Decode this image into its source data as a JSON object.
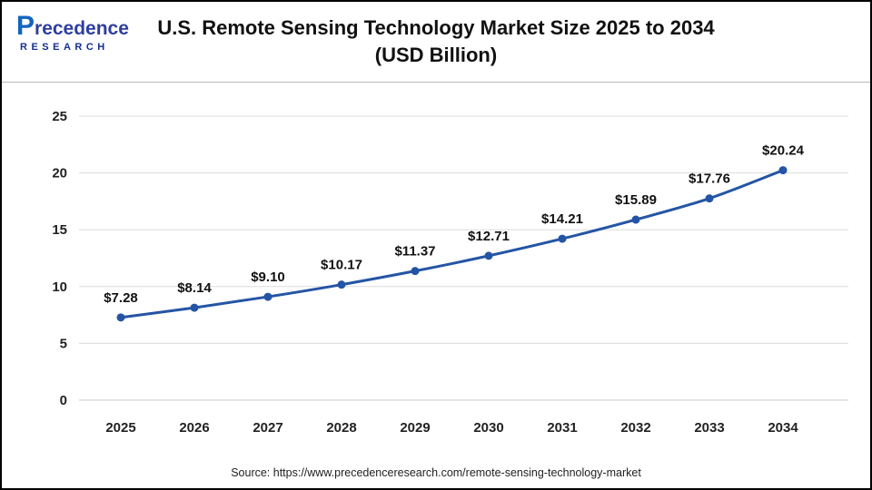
{
  "logo": {
    "name": "Precedence",
    "subtitle": "RESEARCH"
  },
  "header": {
    "title_line1": "U.S. Remote Sensing Technology Market Size 2025 to 2034",
    "title_line2": "(USD Billion)"
  },
  "footer": {
    "source": "Source: https://www.precedenceresearch.com/remote-sensing-technology-market"
  },
  "chart_data": {
    "type": "line",
    "title": "U.S. Remote Sensing Technology Market Size 2025 to 2034 (USD Billion)",
    "categories": [
      "2025",
      "2026",
      "2027",
      "2028",
      "2029",
      "2030",
      "2031",
      "2032",
      "2033",
      "2034"
    ],
    "values": [
      7.28,
      8.14,
      9.1,
      10.17,
      11.37,
      12.71,
      14.21,
      15.89,
      17.76,
      20.24
    ],
    "point_labels": [
      "$7.28",
      "$8.14",
      "$9.10",
      "$10.17",
      "$11.37",
      "$12.71",
      "$14.21",
      "$15.89",
      "$17.76",
      "$20.24"
    ],
    "xlabel": "",
    "ylabel": "",
    "ylim": [
      0,
      25
    ],
    "yticks": [
      0,
      5,
      10,
      15,
      20,
      25
    ],
    "grid": true,
    "legend": "none",
    "line_color": "#2455a4",
    "label_color": "#111111",
    "grid_color": "#dcdcdc",
    "axis_color": "#c9c9c9"
  }
}
